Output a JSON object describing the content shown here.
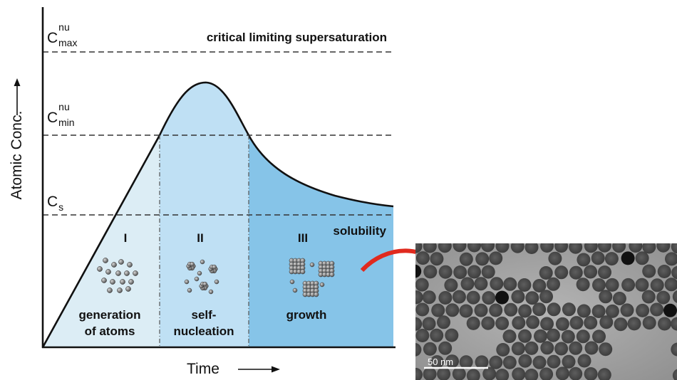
{
  "axes": {
    "y_label": "Atomic Conc.",
    "x_label": "Time"
  },
  "levels": {
    "c_max": {
      "base": "C",
      "sup": "nu",
      "sub": "max"
    },
    "c_min": {
      "base": "C",
      "sup": "nu",
      "sub": "min"
    },
    "c_s": {
      "base": "C",
      "sub": "s"
    }
  },
  "annotations": {
    "critical": "critical limiting supersaturation",
    "solubility": "solubility"
  },
  "stages": [
    {
      "numeral": "I",
      "line1": "generation",
      "line2": "of atoms"
    },
    {
      "numeral": "II",
      "line1": "self-",
      "line2": "nucleation"
    },
    {
      "numeral": "III",
      "line1": "growth",
      "line2": ""
    }
  ],
  "micrograph": {
    "scale_bar": "50 nm"
  },
  "colors": {
    "stage1": "#dcedf5",
    "stage2": "#bfe0f4",
    "stage3": "#86c4e8",
    "arrow": "#e02a1e",
    "particle": "#5a5a5a"
  }
}
